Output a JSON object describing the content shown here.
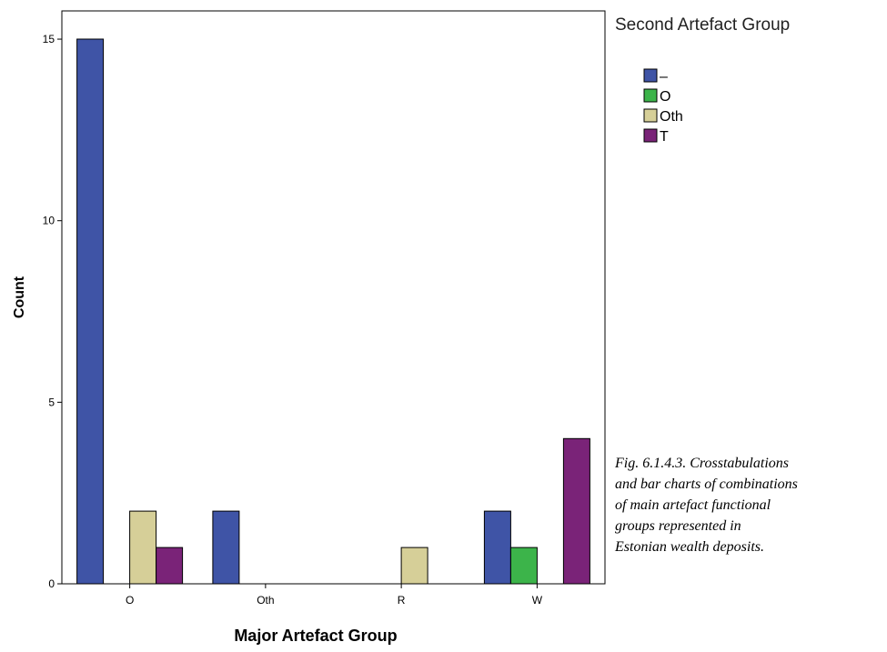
{
  "chart_data": {
    "type": "bar",
    "xlabel": "Major Artefact Group",
    "ylabel": "Count",
    "categories": [
      "O",
      "Oth",
      "R",
      "W"
    ],
    "ylim": [
      0,
      16
    ],
    "yticks": [
      0,
      5,
      10,
      15
    ],
    "grid": false,
    "legend": {
      "title": "Second Artefact Group",
      "position": "top-right"
    },
    "series": [
      {
        "name": "–",
        "color": "#3f54a6",
        "values": [
          15,
          2,
          0,
          2
        ]
      },
      {
        "name": "O",
        "color": "#3cb44a",
        "values": [
          0,
          0,
          0,
          1
        ]
      },
      {
        "name": "Oth",
        "color": "#d6cf98",
        "values": [
          2,
          0,
          1,
          0
        ]
      },
      {
        "name": "T",
        "color": "#7a2378",
        "values": [
          1,
          0,
          0,
          4
        ]
      }
    ]
  },
  "caption": {
    "lines": [
      "Fig. 6.1.4.3. Crosstabulations",
      "and bar charts of combinations",
      "of main artefact functional",
      "groups represented in",
      "Estonian wealth deposits."
    ]
  }
}
